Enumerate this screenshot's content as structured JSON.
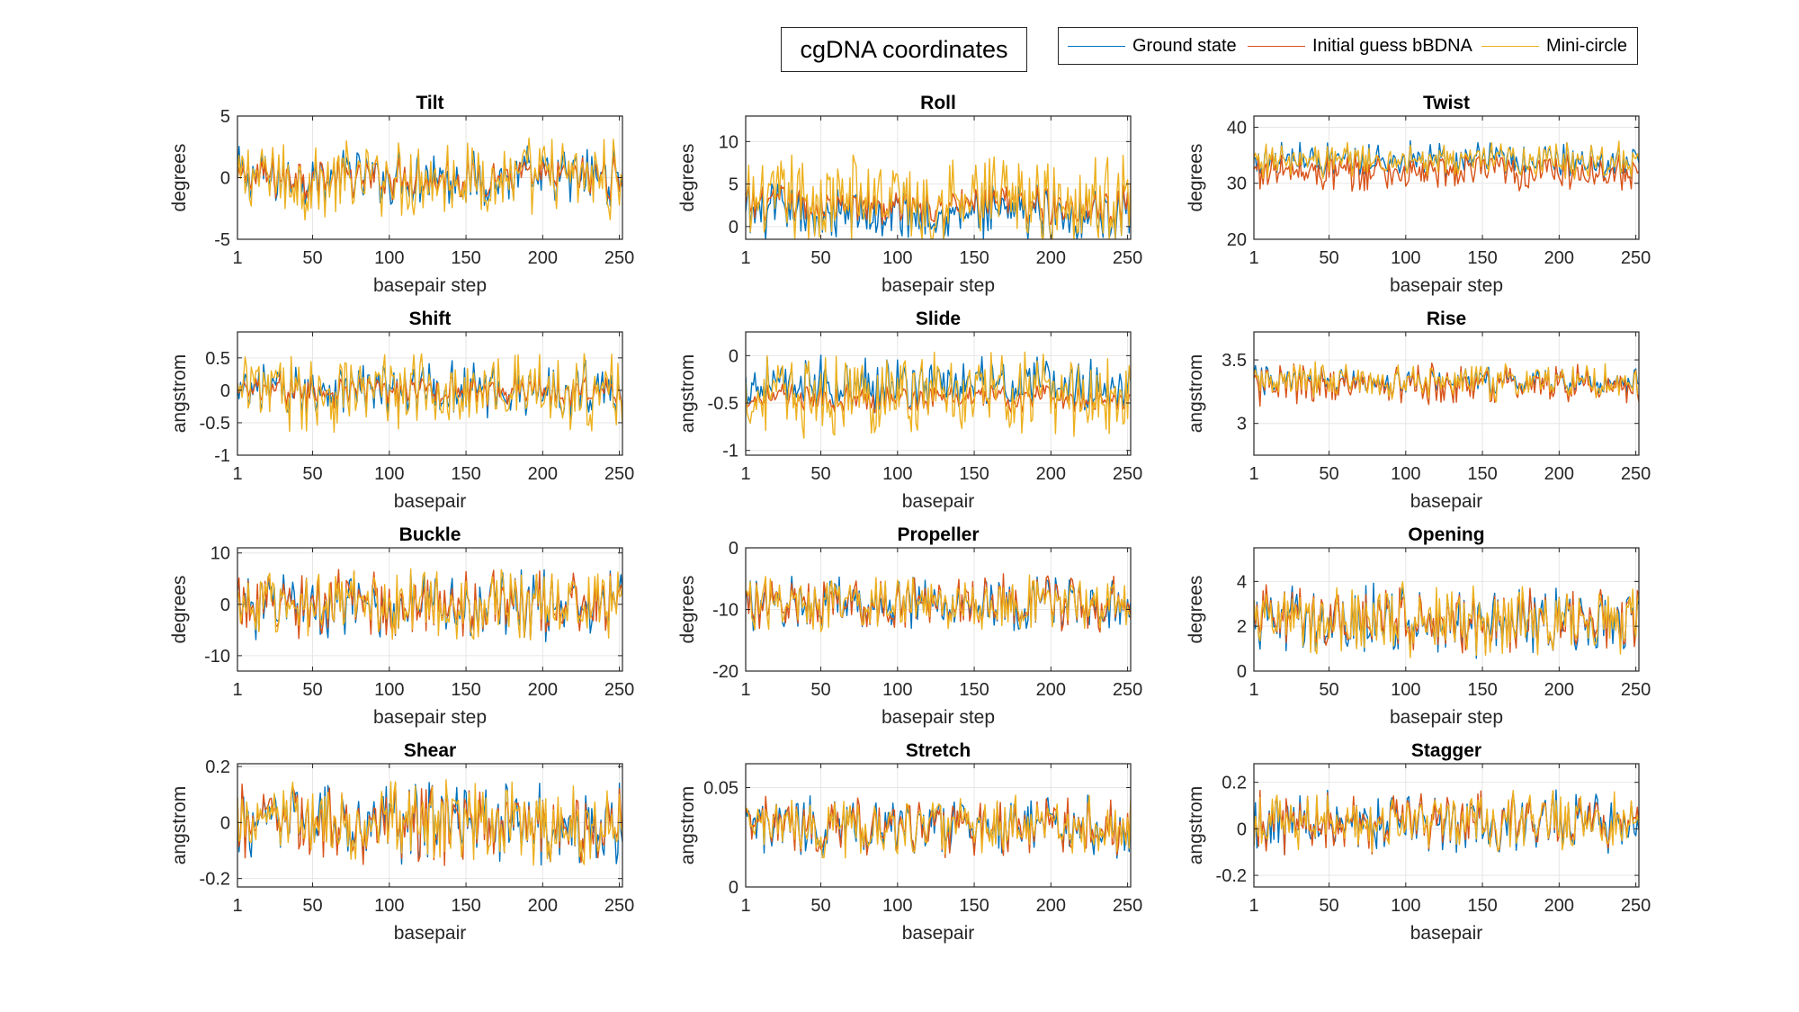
{
  "figure": {
    "title": "cgDNA coordinates",
    "legend": [
      {
        "name": "Ground state",
        "color": "#0072BD"
      },
      {
        "name": "Initial guess bBDNA",
        "color": "#D95319"
      },
      {
        "name": "Mini-circle",
        "color": "#EDB120"
      }
    ]
  },
  "chart_data": [
    {
      "type": "line",
      "title": "Tilt",
      "xlabel": "basepair step",
      "ylabel": "degrees",
      "xlim": [
        1,
        252
      ],
      "ylim": [
        -5,
        5
      ],
      "yticks": [
        -5,
        0,
        5
      ],
      "xticks": [
        1,
        50,
        100,
        150,
        200,
        250
      ],
      "grid": true,
      "n_points": 252,
      "series": [
        {
          "name": "Ground state",
          "color": "#0072BD",
          "mean": 0,
          "amp": 2.5
        },
        {
          "name": "Initial guess bBDNA",
          "color": "#D95319",
          "mean": 0,
          "amp": 1.8
        },
        {
          "name": "Mini-circle",
          "color": "#EDB120",
          "mean": 0,
          "amp": 3.2
        }
      ]
    },
    {
      "type": "line",
      "title": "Roll",
      "xlabel": "basepair step",
      "ylabel": "degrees",
      "xlim": [
        1,
        252
      ],
      "ylim": [
        -1.5,
        13
      ],
      "yticks": [
        0,
        5,
        10
      ],
      "xticks": [
        1,
        50,
        100,
        150,
        200,
        250
      ],
      "grid": true,
      "n_points": 252,
      "series": [
        {
          "name": "Ground state",
          "color": "#0072BD",
          "mean": 1.5,
          "amp": 3.5
        },
        {
          "name": "Initial guess bBDNA",
          "color": "#D95319",
          "mean": 2.5,
          "amp": 2.5
        },
        {
          "name": "Mini-circle",
          "color": "#EDB120",
          "mean": 3.0,
          "amp": 5.5
        }
      ]
    },
    {
      "type": "line",
      "title": "Twist",
      "xlabel": "basepair step",
      "ylabel": "degrees",
      "xlim": [
        1,
        252
      ],
      "ylim": [
        20,
        42
      ],
      "yticks": [
        20,
        30,
        40
      ],
      "xticks": [
        1,
        50,
        100,
        150,
        200,
        250
      ],
      "grid": true,
      "n_points": 252,
      "series": [
        {
          "name": "Ground state",
          "color": "#0072BD",
          "mean": 34,
          "amp": 3.5
        },
        {
          "name": "Initial guess bBDNA",
          "color": "#D95319",
          "mean": 32,
          "amp": 3.5
        },
        {
          "name": "Mini-circle",
          "color": "#EDB120",
          "mean": 34,
          "amp": 3.5
        }
      ]
    },
    {
      "type": "line",
      "title": "Shift",
      "xlabel": "basepair",
      "ylabel": "angstrom",
      "xlim": [
        1,
        252
      ],
      "ylim": [
        -1,
        0.9
      ],
      "yticks": [
        -1,
        -0.5,
        0,
        0.5
      ],
      "xticks": [
        1,
        50,
        100,
        150,
        200,
        250
      ],
      "grid": true,
      "n_points": 252,
      "series": [
        {
          "name": "Ground state",
          "color": "#0072BD",
          "mean": 0,
          "amp": 0.45
        },
        {
          "name": "Initial guess bBDNA",
          "color": "#D95319",
          "mean": 0,
          "amp": 0.25
        },
        {
          "name": "Mini-circle",
          "color": "#EDB120",
          "mean": 0,
          "amp": 0.6
        }
      ]
    },
    {
      "type": "line",
      "title": "Slide",
      "xlabel": "basepair",
      "ylabel": "angstrom",
      "xlim": [
        1,
        252
      ],
      "ylim": [
        -1.05,
        0.25
      ],
      "yticks": [
        -1,
        -0.5,
        0
      ],
      "xticks": [
        1,
        50,
        100,
        150,
        200,
        250
      ],
      "grid": true,
      "n_points": 252,
      "series": [
        {
          "name": "Ground state",
          "color": "#0072BD",
          "mean": -0.3,
          "amp": 0.3
        },
        {
          "name": "Initial guess bBDNA",
          "color": "#D95319",
          "mean": -0.45,
          "amp": 0.15
        },
        {
          "name": "Mini-circle",
          "color": "#EDB120",
          "mean": -0.4,
          "amp": 0.45
        }
      ]
    },
    {
      "type": "line",
      "title": "Rise",
      "xlabel": "basepair",
      "ylabel": "angstrom",
      "xlim": [
        1,
        252
      ],
      "ylim": [
        2.75,
        3.72
      ],
      "yticks": [
        3,
        3.5
      ],
      "xticks": [
        1,
        50,
        100,
        150,
        200,
        250
      ],
      "grid": true,
      "n_points": 252,
      "series": [
        {
          "name": "Ground state",
          "color": "#0072BD",
          "mean": 3.33,
          "amp": 0.12
        },
        {
          "name": "Initial guess bBDNA",
          "color": "#D95319",
          "mean": 3.3,
          "amp": 0.17
        },
        {
          "name": "Mini-circle",
          "color": "#EDB120",
          "mean": 3.33,
          "amp": 0.15
        }
      ]
    },
    {
      "type": "line",
      "title": "Buckle",
      "xlabel": "basepair step",
      "ylabel": "degrees",
      "xlim": [
        1,
        252
      ],
      "ylim": [
        -13,
        11
      ],
      "yticks": [
        -10,
        0,
        10
      ],
      "xticks": [
        1,
        50,
        100,
        150,
        200,
        250
      ],
      "grid": true,
      "n_points": 252,
      "series": [
        {
          "name": "Ground state",
          "color": "#0072BD",
          "mean": 0,
          "amp": 7
        },
        {
          "name": "Initial guess bBDNA",
          "color": "#D95319",
          "mean": 0,
          "amp": 7
        },
        {
          "name": "Mini-circle",
          "color": "#EDB120",
          "mean": 0,
          "amp": 7
        }
      ]
    },
    {
      "type": "line",
      "title": "Propeller",
      "xlabel": "basepair step",
      "ylabel": "degrees",
      "xlim": [
        1,
        252
      ],
      "ylim": [
        -20,
        0
      ],
      "yticks": [
        -20,
        -10,
        0
      ],
      "xticks": [
        1,
        50,
        100,
        150,
        200,
        250
      ],
      "grid": true,
      "n_points": 252,
      "series": [
        {
          "name": "Ground state",
          "color": "#0072BD",
          "mean": -9,
          "amp": 4.5
        },
        {
          "name": "Initial guess bBDNA",
          "color": "#D95319",
          "mean": -9,
          "amp": 4.5
        },
        {
          "name": "Mini-circle",
          "color": "#EDB120",
          "mean": -9,
          "amp": 4.5
        }
      ]
    },
    {
      "type": "line",
      "title": "Opening",
      "xlabel": "basepair step",
      "ylabel": "degrees",
      "xlim": [
        1,
        252
      ],
      "ylim": [
        0,
        5.5
      ],
      "yticks": [
        0,
        2,
        4
      ],
      "xticks": [
        1,
        50,
        100,
        150,
        200,
        250
      ],
      "grid": true,
      "n_points": 252,
      "series": [
        {
          "name": "Ground state",
          "color": "#0072BD",
          "mean": 2.3,
          "amp": 1.6
        },
        {
          "name": "Initial guess bBDNA",
          "color": "#D95319",
          "mean": 2.3,
          "amp": 1.6
        },
        {
          "name": "Mini-circle",
          "color": "#EDB120",
          "mean": 2.3,
          "amp": 1.6
        }
      ]
    },
    {
      "type": "line",
      "title": "Shear",
      "xlabel": "basepair",
      "ylabel": "angstrom",
      "xlim": [
        1,
        252
      ],
      "ylim": [
        -0.23,
        0.21
      ],
      "yticks": [
        -0.2,
        0,
        0.2
      ],
      "xticks": [
        1,
        50,
        100,
        150,
        200,
        250
      ],
      "grid": true,
      "n_points": 252,
      "series": [
        {
          "name": "Ground state",
          "color": "#0072BD",
          "mean": 0,
          "amp": 0.15
        },
        {
          "name": "Initial guess bBDNA",
          "color": "#D95319",
          "mean": 0,
          "amp": 0.15
        },
        {
          "name": "Mini-circle",
          "color": "#EDB120",
          "mean": 0,
          "amp": 0.15
        }
      ]
    },
    {
      "type": "line",
      "title": "Stretch",
      "xlabel": "basepair",
      "ylabel": "angstrom",
      "xlim": [
        1,
        252
      ],
      "ylim": [
        0,
        0.062
      ],
      "yticks": [
        0,
        0.05
      ],
      "xticks": [
        1,
        50,
        100,
        150,
        200,
        250
      ],
      "grid": true,
      "n_points": 252,
      "series": [
        {
          "name": "Ground state",
          "color": "#0072BD",
          "mean": 0.03,
          "amp": 0.015
        },
        {
          "name": "Initial guess bBDNA",
          "color": "#D95319",
          "mean": 0.03,
          "amp": 0.015
        },
        {
          "name": "Mini-circle",
          "color": "#EDB120",
          "mean": 0.03,
          "amp": 0.015
        }
      ]
    },
    {
      "type": "line",
      "title": "Stagger",
      "xlabel": "basepair",
      "ylabel": "angstrom",
      "xlim": [
        1,
        252
      ],
      "ylim": [
        -0.25,
        0.28
      ],
      "yticks": [
        -0.2,
        0,
        0.2
      ],
      "xticks": [
        1,
        50,
        100,
        150,
        200,
        250
      ],
      "grid": true,
      "n_points": 252,
      "series": [
        {
          "name": "Ground state",
          "color": "#0072BD",
          "mean": 0.03,
          "amp": 0.13
        },
        {
          "name": "Initial guess bBDNA",
          "color": "#D95319",
          "mean": 0.03,
          "amp": 0.13
        },
        {
          "name": "Mini-circle",
          "color": "#EDB120",
          "mean": 0.03,
          "amp": 0.13
        }
      ]
    }
  ]
}
